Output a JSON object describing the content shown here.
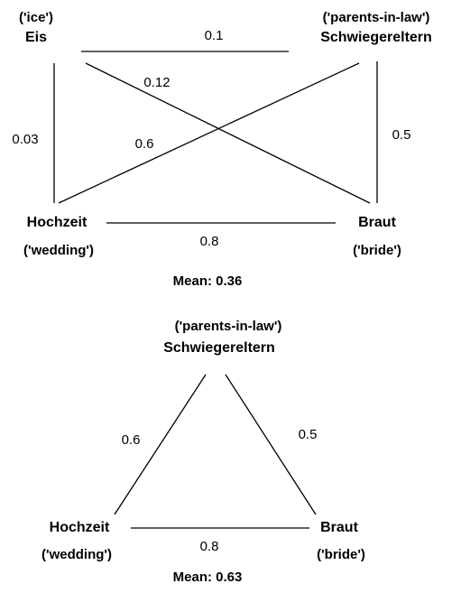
{
  "graphs": [
    {
      "nodes": [
        {
          "label": "Eis",
          "gloss": "('ice')"
        },
        {
          "label": "Schwiegereltern",
          "gloss": "('parents-in-law')"
        },
        {
          "label": "Hochzeit",
          "gloss": "('wedding')"
        },
        {
          "label": "Braut",
          "gloss": "('bride')"
        }
      ],
      "edges": [
        {
          "weight": "0.1"
        },
        {
          "weight": "0.03"
        },
        {
          "weight": "0.5"
        },
        {
          "weight": "0.8"
        },
        {
          "weight": "0.12"
        },
        {
          "weight": "0.6"
        }
      ],
      "mean": "Mean: 0.36"
    },
    {
      "nodes": [
        {
          "label": "Schwiegereltern",
          "gloss": "('parents-in-law')"
        },
        {
          "label": "Hochzeit",
          "gloss": "('wedding')"
        },
        {
          "label": "Braut",
          "gloss": "('bride')"
        }
      ],
      "edges": [
        {
          "weight": "0.6"
        },
        {
          "weight": "0.5"
        },
        {
          "weight": "0.8"
        }
      ],
      "mean": "Mean: 0.63"
    }
  ]
}
